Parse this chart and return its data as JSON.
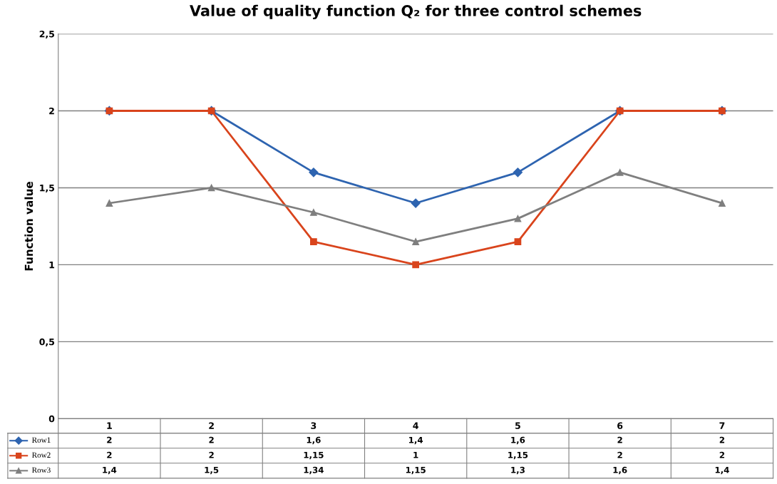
{
  "chart_data": {
    "type": "line",
    "title": "Value of quality function Q₂ for three control schemes",
    "ylabel": "Function value",
    "categories": [
      "1",
      "2",
      "3",
      "4",
      "5",
      "6",
      "7"
    ],
    "series": [
      {
        "name": "Row1",
        "color": "#2e64b0",
        "marker": "diamond",
        "values": [
          2,
          2,
          1.6,
          1.4,
          1.6,
          2,
          2
        ],
        "value_labels": [
          "2",
          "2",
          "1,6",
          "1,4",
          "1,6",
          "2",
          "2"
        ]
      },
      {
        "name": "Row2",
        "color": "#d9441c",
        "marker": "square",
        "values": [
          2,
          2,
          1.15,
          1,
          1.15,
          2,
          2
        ],
        "value_labels": [
          "2",
          "2",
          "1,15",
          "1",
          "1,15",
          "2",
          "2"
        ]
      },
      {
        "name": "Row3",
        "color": "#7f7f7f",
        "marker": "triangle",
        "values": [
          1.4,
          1.5,
          1.34,
          1.15,
          1.3,
          1.6,
          1.4
        ],
        "value_labels": [
          "1,4",
          "1,5",
          "1,34",
          "1,15",
          "1,3",
          "1,6",
          "1,4"
        ]
      }
    ],
    "ylim": [
      0,
      2.5
    ],
    "yticks": [
      0,
      {
        "value": 0.5,
        "label": "0,5"
      },
      1,
      {
        "value": 1.5,
        "label": "1,5"
      },
      2,
      {
        "value": 2.5,
        "label": "2,5"
      }
    ],
    "grid": "y",
    "legend": "bottom",
    "line_style": "solid"
  }
}
